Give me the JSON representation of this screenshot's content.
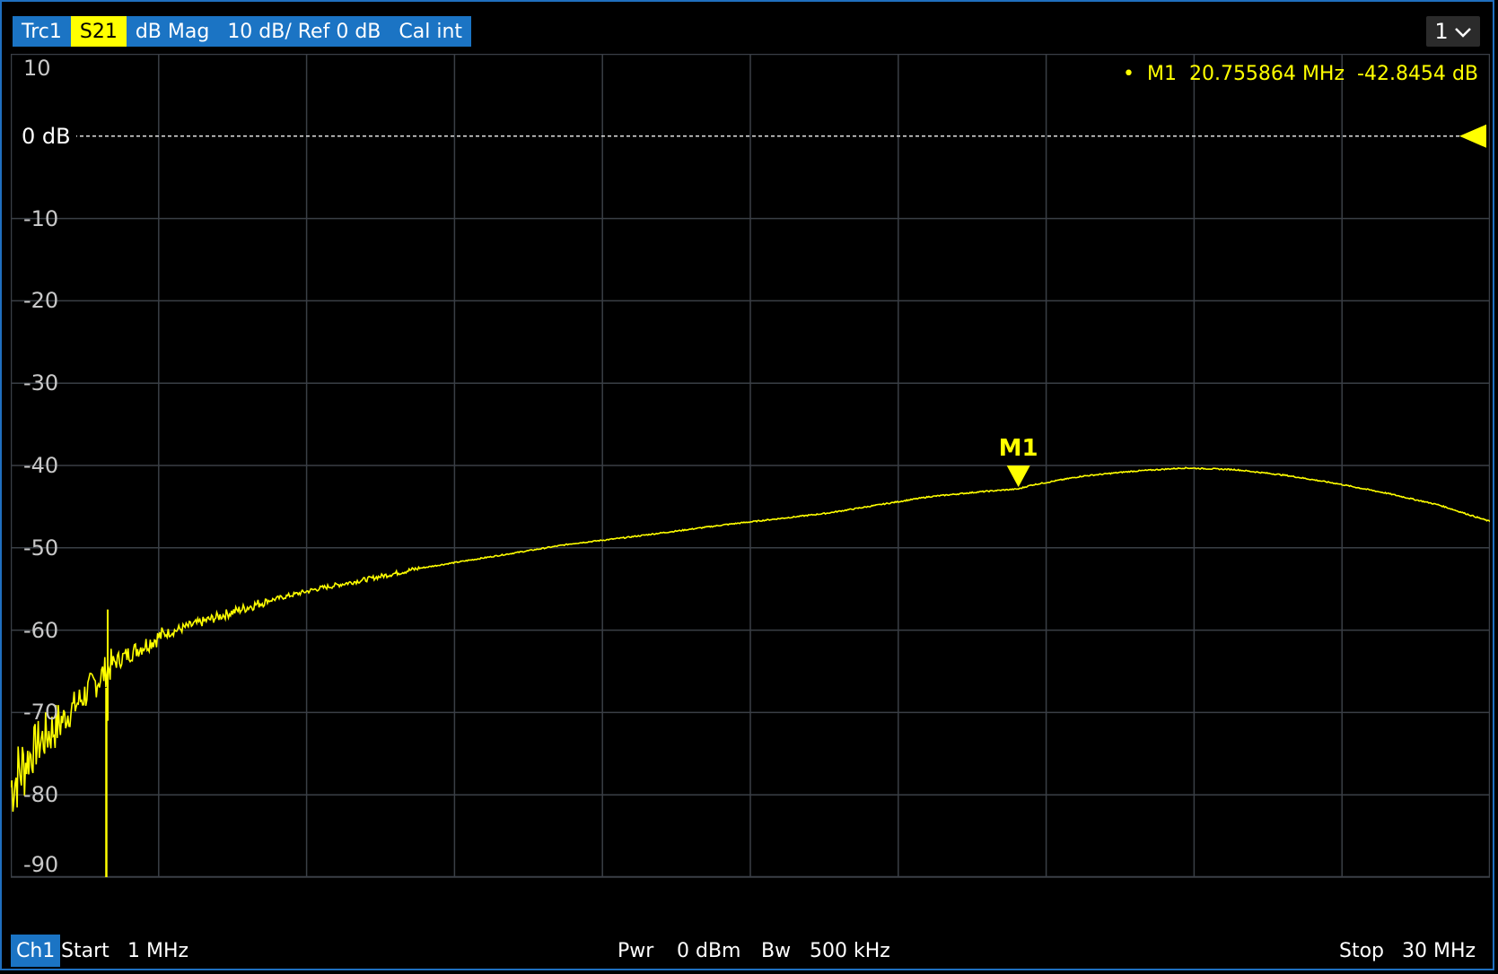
{
  "header": {
    "trace": "Trc1",
    "param": "S21",
    "format": "dB Mag",
    "scale": "10 dB/ Ref 0 dB",
    "cal": "Cal int"
  },
  "channel_selector": {
    "value": "1"
  },
  "marker": {
    "dot": "•",
    "name": "M1",
    "freq": "20.755864",
    "freq_unit": "MHz",
    "value": "-42.8454",
    "value_unit": "dB",
    "label": "M1"
  },
  "footer": {
    "channel": "Ch1",
    "start_label": "Start",
    "start_value": "1 MHz",
    "pwr_label": "Pwr",
    "pwr_value": "0 dBm",
    "bw_label": "Bw",
    "bw_value": "500 kHz",
    "stop_label": "Stop",
    "stop_value": "30 MHz"
  },
  "colors": {
    "trace": "#ffff00",
    "grid": "#3a3f46",
    "accent": "#1b74c4",
    "ref_line": "#e0e0e0"
  },
  "chart_data": {
    "type": "line",
    "ref_label": "0 dB",
    "ylim": [
      -90,
      10
    ],
    "xlim_mhz": [
      1,
      30
    ],
    "y_ticks": [
      "10",
      "-10",
      "-20",
      "-30",
      "-40",
      "-50",
      "-60",
      "-70",
      "-80",
      "-90"
    ],
    "grid": true,
    "series": [
      {
        "x_mhz": [
          1.0,
          1.2,
          1.5,
          2.0,
          3.0,
          4.0,
          5.0,
          6.0,
          7.0,
          8.0,
          9.0,
          10.0,
          11.0,
          12.0,
          13.0,
          14.0,
          15.0,
          16.0,
          17.0,
          18.0,
          19.0,
          20.0,
          20.76,
          21.0,
          22.0,
          23.0,
          24.0,
          25.0,
          26.0,
          27.0,
          28.0,
          29.0,
          30.0
        ],
        "y_db": [
          -79,
          -77,
          -74,
          -71,
          -64,
          -60.5,
          -58.5,
          -56.5,
          -55,
          -53.8,
          -52.5,
          -51.5,
          -50.5,
          -49.5,
          -48.8,
          -48,
          -47.2,
          -46.5,
          -45.8,
          -44.8,
          -43.8,
          -43.2,
          -42.8454,
          -42.4,
          -41.3,
          -40.7,
          -40.3,
          -40.5,
          -41.2,
          -42.2,
          -43.4,
          -44.8,
          -46.8
        ]
      }
    ],
    "spike_x_mhz": 2.9,
    "ref_db": 0,
    "marker_x_mhz": 20.755864,
    "marker_y_db": -42.8454
  }
}
